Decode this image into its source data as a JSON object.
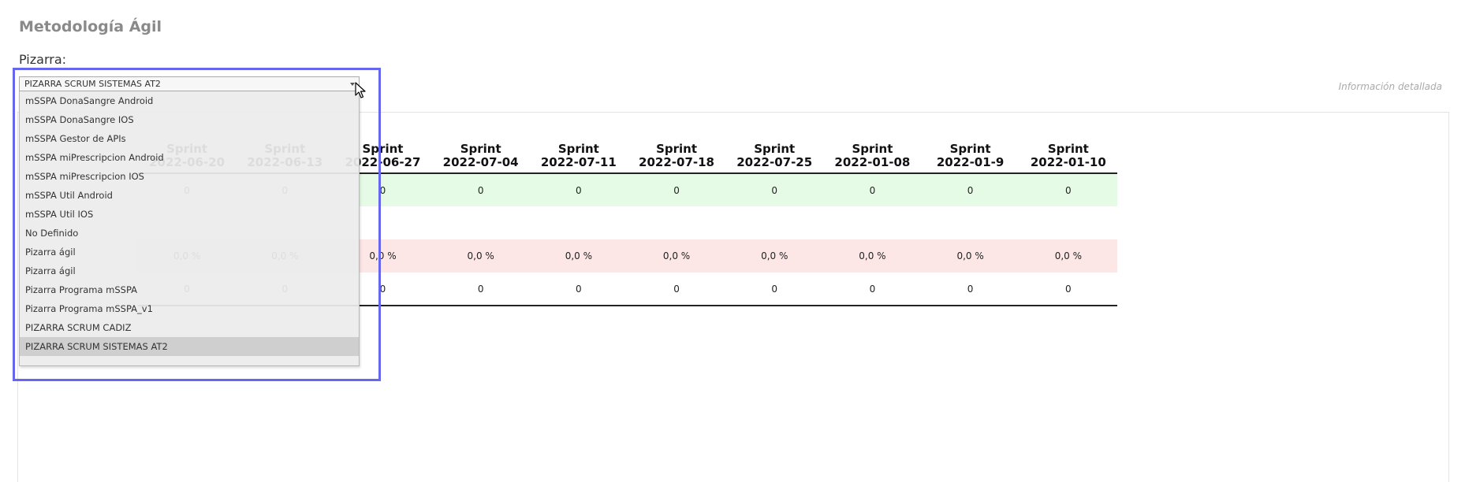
{
  "page": {
    "title": "Metodología Ágil"
  },
  "board": {
    "label": "Pizarra:",
    "selected": "PIZARRA SCRUM SISTEMAS AT2",
    "options": [
      "mSSPA DonaSangre Android",
      "mSSPA DonaSangre IOS",
      "mSSPA Gestor de APIs",
      "mSSPA miPrescripcion Android",
      "mSSPA miPrescripcion IOS",
      "mSSPA Util Android",
      "mSSPA Util IOS",
      "No Definido",
      "Pizarra ágil",
      "Pizarra ágil",
      "Pizarra Programa mSSPA",
      "Pizarra Programa mSSPA_v1",
      "PIZARRA SCRUM CADIZ",
      "PIZARRA SCRUM SISTEMAS AT2"
    ]
  },
  "detail_link": "Información detallada",
  "table": {
    "columns": [
      {
        "label": "Sprint",
        "date": "2022-06-20"
      },
      {
        "label": "Sprint",
        "date": "2022-06-13"
      },
      {
        "label": "Sprint",
        "date": "2022-06-27"
      },
      {
        "label": "Sprint",
        "date": "2022-07-04"
      },
      {
        "label": "Sprint",
        "date": "2022-07-11"
      },
      {
        "label": "Sprint",
        "date": "2022-07-18"
      },
      {
        "label": "Sprint",
        "date": "2022-07-25"
      },
      {
        "label": "Sprint",
        "date": "2022-01-08"
      },
      {
        "label": "Sprint",
        "date": "2022-01-9"
      },
      {
        "label": "Sprint",
        "date": "2022-01-10"
      }
    ],
    "rows": [
      {
        "style": "green",
        "cells": [
          "0",
          "0",
          "0",
          "0",
          "0",
          "0",
          "0",
          "0",
          "0",
          "0"
        ]
      },
      {
        "style": "blank",
        "cells": [
          "",
          "",
          "",
          "",
          "",
          "",
          "",
          "",
          "",
          ""
        ]
      },
      {
        "style": "red",
        "cells": [
          "0,0 %",
          "0,0 %",
          "0,0 %",
          "0,0 %",
          "0,0 %",
          "0,0 %",
          "0,0 %",
          "0,0 %",
          "0,0 %",
          "0,0 %"
        ]
      },
      {
        "style": "last",
        "cells": [
          "0",
          "0",
          "0",
          "0",
          "0",
          "0",
          "0",
          "0",
          "0",
          "0"
        ]
      }
    ]
  },
  "icons": {
    "select_arrow": "chevron-down-icon",
    "cursor": "mouse-cursor-icon"
  },
  "colors": {
    "highlight": "#6666ee",
    "row_green": "#e6fbe6",
    "row_red": "#fde6e6"
  }
}
